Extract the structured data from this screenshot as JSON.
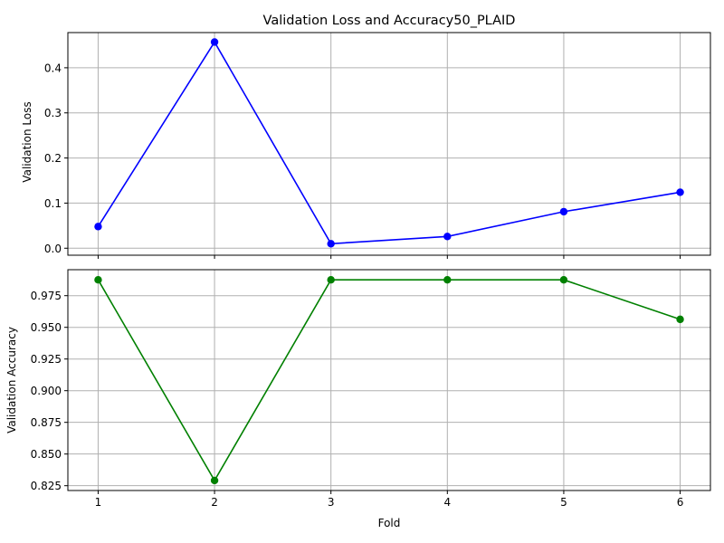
{
  "chart_data": [
    {
      "type": "line",
      "title": "Validation Loss and Accuracy50_PLAID",
      "xlabel": "",
      "ylabel": "Validation Loss",
      "x": [
        1,
        2,
        3,
        4,
        5,
        6
      ],
      "series": [
        {
          "values": [
            0.048,
            0.457,
            0.01,
            0.026,
            0.081,
            0.124
          ],
          "color": "#0000ff",
          "marker": "circle"
        }
      ],
      "xlim": [
        0.74,
        6.26
      ],
      "ylim": [
        -0.0155,
        0.478
      ],
      "yticks": [
        0.0,
        0.1,
        0.2,
        0.3,
        0.4
      ],
      "ytick_labels": [
        "0.0",
        "0.1",
        "0.2",
        "0.3",
        "0.4"
      ],
      "xticks": [
        1,
        2,
        3,
        4,
        5,
        6
      ],
      "xtick_labels": [],
      "grid": true
    },
    {
      "type": "line",
      "title": "",
      "xlabel": "Fold",
      "ylabel": "Validation Accuracy",
      "x": [
        1,
        2,
        3,
        4,
        5,
        6
      ],
      "series": [
        {
          "values": [
            0.9875,
            0.8291,
            0.9875,
            0.9875,
            0.9875,
            0.9563
          ],
          "color": "#008000",
          "marker": "circle"
        }
      ],
      "xlim": [
        0.74,
        6.26
      ],
      "ylim": [
        0.8212,
        0.9955
      ],
      "yticks": [
        0.825,
        0.85,
        0.875,
        0.9,
        0.925,
        0.95,
        0.975
      ],
      "ytick_labels": [
        "0.825",
        "0.850",
        "0.875",
        "0.900",
        "0.925",
        "0.950",
        "0.975"
      ],
      "xticks": [
        1,
        2,
        3,
        4,
        5,
        6
      ],
      "xtick_labels": [
        "1",
        "2",
        "3",
        "4",
        "5",
        "6"
      ],
      "grid": true
    }
  ]
}
